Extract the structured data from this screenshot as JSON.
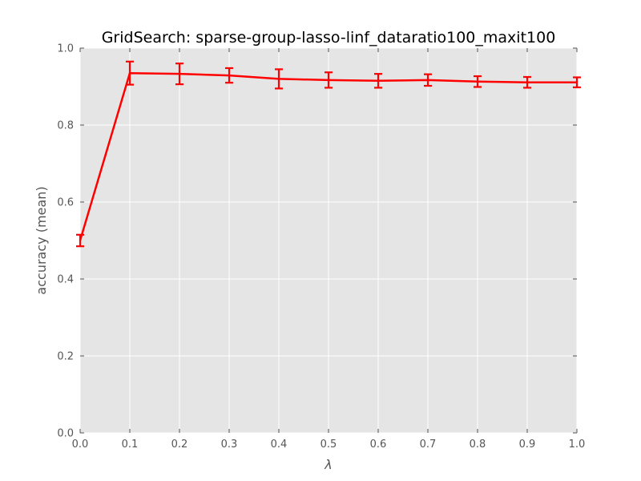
{
  "chart_data": {
    "type": "line",
    "title": "GridSearch: sparse-group-lasso-linf_dataratio100_maxit100",
    "xlabel": "λ",
    "ylabel": "accuracy (mean)",
    "xlim": [
      0.0,
      1.0
    ],
    "ylim": [
      0.0,
      1.0
    ],
    "x_ticks": [
      "0.0",
      "0.1",
      "0.2",
      "0.3",
      "0.4",
      "0.5",
      "0.6",
      "0.7",
      "0.8",
      "0.9",
      "1.0"
    ],
    "y_ticks": [
      "0.0",
      "0.2",
      "0.4",
      "0.6",
      "0.8",
      "1.0"
    ],
    "grid": true,
    "series": [
      {
        "color": "#ff0000",
        "x": [
          0.0,
          0.1,
          0.2,
          0.3,
          0.4,
          0.5,
          0.6,
          0.7,
          0.8,
          0.9,
          1.0
        ],
        "values": [
          0.5,
          0.935,
          0.933,
          0.929,
          0.92,
          0.917,
          0.915,
          0.917,
          0.913,
          0.911,
          0.911
        ],
        "error": [
          0.015,
          0.03,
          0.027,
          0.019,
          0.025,
          0.02,
          0.018,
          0.015,
          0.014,
          0.014,
          0.013
        ]
      }
    ]
  }
}
